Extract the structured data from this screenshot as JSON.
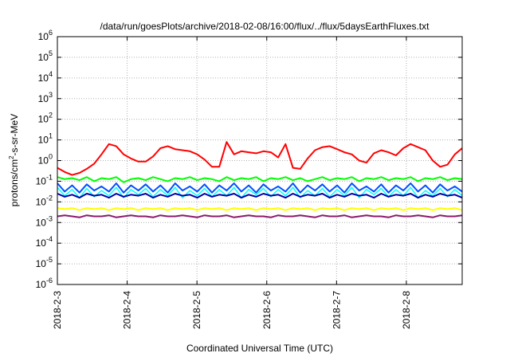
{
  "chart_data": {
    "type": "line",
    "title": "/data/run/goesPlots/archive/2018-02-08/16:00/flux/../flux/5daysEarthFluxes.txt",
    "xlabel": "Coordinated Universal Time (UTC)",
    "ylabel": {
      "prefix": "protons/cm",
      "sup": "2",
      "suffix": "-s-sr-MeV"
    },
    "yscale": "log",
    "ylim": [
      -6,
      6
    ],
    "y_ticks": [
      {
        "exp": 6,
        "label_base": "10",
        "label_exp": "6"
      },
      {
        "exp": 5,
        "label_base": "10",
        "label_exp": "5"
      },
      {
        "exp": 4,
        "label_base": "10",
        "label_exp": "4"
      },
      {
        "exp": 3,
        "label_base": "10",
        "label_exp": "3"
      },
      {
        "exp": 2,
        "label_base": "10",
        "label_exp": "2"
      },
      {
        "exp": 1,
        "label_base": "10",
        "label_exp": "1"
      },
      {
        "exp": 0,
        "label_base": "10",
        "label_exp": "0"
      },
      {
        "exp": -1,
        "label_base": "10",
        "label_exp": "-1"
      },
      {
        "exp": -2,
        "label_base": "10",
        "label_exp": "-2"
      },
      {
        "exp": -3,
        "label_base": "10",
        "label_exp": "-3"
      },
      {
        "exp": -4,
        "label_base": "10",
        "label_exp": "-4"
      },
      {
        "exp": -5,
        "label_base": "10",
        "label_exp": "-5"
      },
      {
        "exp": -6,
        "label_base": "10",
        "label_exp": "-6"
      }
    ],
    "x_range_days": [
      0,
      5.8
    ],
    "x_ticks": [
      {
        "day": 0,
        "label": "2018-2-3"
      },
      {
        "day": 1,
        "label": "2018-2-4"
      },
      {
        "day": 2,
        "label": "2018-2-5"
      },
      {
        "day": 3,
        "label": "2018-2-6"
      },
      {
        "day": 4,
        "label": "2018-2-7"
      },
      {
        "day": 5,
        "label": "2018-2-8"
      }
    ],
    "grid": true,
    "series": [
      {
        "color": "#ff0000",
        "width": 2,
        "log10": [
          -0.35,
          -0.55,
          -0.7,
          -0.6,
          -0.4,
          -0.15,
          0.3,
          0.8,
          0.7,
          0.3,
          0.1,
          -0.05,
          -0.05,
          0.2,
          0.6,
          0.7,
          0.55,
          0.5,
          0.45,
          0.3,
          0.05,
          -0.3,
          -0.3,
          0.9,
          0.3,
          0.45,
          0.4,
          0.35,
          0.45,
          0.4,
          0.15,
          0.8,
          -0.35,
          -0.4,
          0.1,
          0.5,
          0.65,
          0.7,
          0.55,
          0.4,
          0.3,
          0.0,
          -0.1,
          0.35,
          0.5,
          0.4,
          0.25,
          0.6,
          0.8,
          0.65,
          0.5,
          0.0,
          -0.3,
          -0.2,
          0.3,
          0.6
        ]
      },
      {
        "color": "#00ff00",
        "width": 2,
        "log10": [
          -0.8,
          -0.9,
          -0.85,
          -0.95,
          -0.8,
          -1.0,
          -0.85,
          -0.9,
          -0.8,
          -1.05,
          -0.9,
          -0.85,
          -0.95,
          -0.8,
          -0.9,
          -1.0,
          -0.85,
          -0.9,
          -0.8,
          -0.95,
          -0.85,
          -0.9,
          -1.0,
          -0.8,
          -0.95,
          -0.85,
          -0.9,
          -0.8,
          -1.0,
          -0.85,
          -0.9,
          -0.8,
          -0.95,
          -0.85,
          -1.0,
          -0.9,
          -0.8,
          -0.95,
          -0.85,
          -0.9,
          -0.8,
          -1.0,
          -0.85,
          -0.9,
          -0.8,
          -0.95,
          -0.85,
          -0.9,
          -0.8,
          -1.0,
          -0.85,
          -0.9,
          -0.8,
          -0.95,
          -0.85,
          -0.9
        ]
      },
      {
        "color": "#00ffff",
        "width": 1.5,
        "log10": [
          -1.3,
          -1.7,
          -1.4,
          -1.8,
          -1.35,
          -1.75,
          -1.45,
          -1.7,
          -1.3,
          -1.8,
          -1.4,
          -1.65,
          -1.35,
          -1.75,
          -1.4,
          -1.7,
          -1.3,
          -1.8,
          -1.45,
          -1.7,
          -1.35,
          -1.75,
          -1.4,
          -1.7,
          -1.3,
          -1.8,
          -1.4,
          -1.65,
          -1.35,
          -1.75,
          -1.4,
          -1.7,
          -1.3,
          -1.8,
          -1.45,
          -1.7,
          -1.35,
          -1.75,
          -1.4,
          -1.7,
          -1.3,
          -1.8,
          -1.4,
          -1.65,
          -1.35,
          -1.75,
          -1.4,
          -1.7,
          -1.3,
          -1.8,
          -1.45,
          -1.7,
          -1.35,
          -1.75,
          -1.4,
          -1.7
        ]
      },
      {
        "color": "#0050ff",
        "width": 2,
        "log10": [
          -1.1,
          -1.5,
          -1.2,
          -1.55,
          -1.15,
          -1.45,
          -1.25,
          -1.5,
          -1.1,
          -1.55,
          -1.2,
          -1.45,
          -1.15,
          -1.5,
          -1.2,
          -1.55,
          -1.1,
          -1.45,
          -1.25,
          -1.5,
          -1.15,
          -1.55,
          -1.2,
          -1.45,
          -1.1,
          -1.5,
          -1.2,
          -1.55,
          -1.15,
          -1.45,
          -1.25,
          -1.5,
          -1.1,
          -1.55,
          -1.2,
          -1.45,
          -1.15,
          -1.5,
          -1.2,
          -1.55,
          -1.1,
          -1.45,
          -1.25,
          -1.5,
          -1.15,
          -1.55,
          -1.2,
          -1.45,
          -1.1,
          -1.5,
          -1.2,
          -1.55,
          -1.15,
          -1.45,
          -1.25,
          -1.5
        ]
      },
      {
        "color": "#0000aa",
        "width": 2,
        "log10": [
          -1.6,
          -1.75,
          -1.65,
          -1.8,
          -1.6,
          -1.7,
          -1.65,
          -1.8,
          -1.6,
          -1.75,
          -1.65,
          -1.7,
          -1.6,
          -1.8,
          -1.65,
          -1.75,
          -1.6,
          -1.7,
          -1.65,
          -1.8,
          -1.6,
          -1.75,
          -1.65,
          -1.7,
          -1.6,
          -1.8,
          -1.65,
          -1.75,
          -1.6,
          -1.7,
          -1.65,
          -1.8,
          -1.6,
          -1.75,
          -1.65,
          -1.7,
          -1.6,
          -1.8,
          -1.65,
          -1.75,
          -1.6,
          -1.7,
          -1.65,
          -1.8,
          -1.6,
          -1.75,
          -1.65,
          -1.7,
          -1.6,
          -1.8,
          -1.65,
          -1.75,
          -1.6,
          -1.7,
          -1.65,
          -1.8
        ]
      },
      {
        "color": "#ffff00",
        "width": 2,
        "log10": [
          -2.3,
          -2.35,
          -2.3,
          -2.4,
          -2.3,
          -2.35,
          -2.3,
          -2.4,
          -2.3,
          -2.35,
          -2.3,
          -2.4,
          -2.3,
          -2.35,
          -2.3,
          -2.4,
          -2.3,
          -2.35,
          -2.3,
          -2.4,
          -2.3,
          -2.35,
          -2.3,
          -2.4,
          -2.3,
          -2.35,
          -2.3,
          -2.4,
          -2.3,
          -2.35,
          -2.3,
          -2.4,
          -2.3,
          -2.35,
          -2.3,
          -2.4,
          -2.3,
          -2.35,
          -2.3,
          -2.4,
          -2.3,
          -2.35,
          -2.3,
          -2.4,
          -2.3,
          -2.35,
          -2.3,
          -2.4,
          -2.3,
          -2.35,
          -2.3,
          -2.4,
          -2.3,
          -2.35,
          -2.3,
          -2.4
        ]
      },
      {
        "color": "#8b1a6b",
        "width": 2,
        "log10": [
          -2.7,
          -2.65,
          -2.7,
          -2.75,
          -2.65,
          -2.7,
          -2.7,
          -2.65,
          -2.75,
          -2.7,
          -2.65,
          -2.7,
          -2.7,
          -2.75,
          -2.65,
          -2.7,
          -2.7,
          -2.65,
          -2.7,
          -2.75,
          -2.65,
          -2.7,
          -2.7,
          -2.65,
          -2.75,
          -2.7,
          -2.65,
          -2.7,
          -2.7,
          -2.75,
          -2.65,
          -2.7,
          -2.7,
          -2.65,
          -2.7,
          -2.75,
          -2.65,
          -2.7,
          -2.7,
          -2.65,
          -2.75,
          -2.7,
          -2.65,
          -2.7,
          -2.7,
          -2.75,
          -2.65,
          -2.7,
          -2.7,
          -2.65,
          -2.7,
          -2.75,
          -2.65,
          -2.7,
          -2.7,
          -2.65
        ]
      }
    ]
  }
}
